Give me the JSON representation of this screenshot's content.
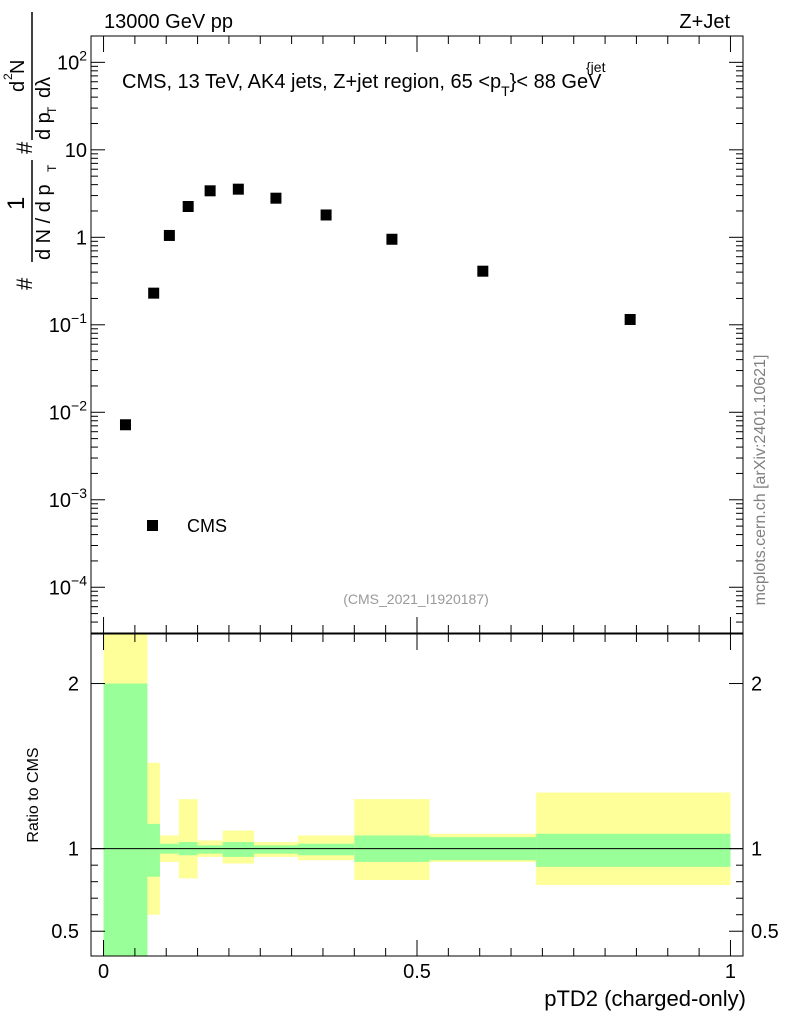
{
  "header": {
    "left": "13000 GeV pp",
    "right": "Z+Jet"
  },
  "side_label": "mcplots.cern.ch [arXiv:2401.10621]",
  "analysis_id": "(CMS_2021_I1920187)",
  "chart_data": [
    {
      "type": "scatter",
      "title": "CMS, 13 TeV, AK4 jets, Z+jet region, 65 <p_T^{jet}< 88 GeV",
      "title_parts": {
        "main": "CMS, 13 TeV, AK4 jets, Z+jet region, 65 <p",
        "sup": "{jet",
        "sub": "T",
        "tail": "}< 88 GeV"
      },
      "ylabel": "1/(dN/dp_T) d²N/(dp_T dλ)",
      "ylabel_parts": {
        "one": "1",
        "den": "d N / d p",
        "num": "d",
        "num_sup": "2",
        "num_tail": "N",
        "den2": "d p",
        "den2_tail": "dλ",
        "sub": "T",
        "hash": "#"
      },
      "yscale": "log",
      "ylim": [
        3e-05,
        200
      ],
      "xlim": [
        -0.02,
        1.02
      ],
      "yticks": [
        {
          "value": 0.0001,
          "label": "10",
          "exp": "−4"
        },
        {
          "value": 0.001,
          "label": "10",
          "exp": "−3"
        },
        {
          "value": 0.01,
          "label": "10",
          "exp": "−2"
        },
        {
          "value": 0.1,
          "label": "10",
          "exp": "−1"
        },
        {
          "value": 1,
          "label": "1",
          "exp": ""
        },
        {
          "value": 10,
          "label": "10",
          "exp": ""
        },
        {
          "value": 100,
          "label": "10",
          "exp": "2"
        }
      ],
      "series": [
        {
          "name": "CMS",
          "x": [
            0.035,
            0.08,
            0.105,
            0.135,
            0.17,
            0.215,
            0.275,
            0.355,
            0.46,
            0.605,
            0.84
          ],
          "y": [
            0.0072,
            0.23,
            1.05,
            2.25,
            3.4,
            3.55,
            2.8,
            1.8,
            0.95,
            0.41,
            0.115
          ]
        }
      ],
      "legend": {
        "placement": "bottom-left",
        "entries": [
          "CMS"
        ]
      }
    },
    {
      "type": "area",
      "ylabel": "Ratio to CMS",
      "xlabel": "pTD2 (charged-only)",
      "xlim": [
        -0.02,
        1.02
      ],
      "ylim": [
        0.35,
        2.3
      ],
      "xticks": [
        {
          "value": 0,
          "label": "0"
        },
        {
          "value": 0.5,
          "label": "0.5"
        },
        {
          "value": 1,
          "label": "1"
        }
      ],
      "yticks": [
        {
          "value": 0.5,
          "label": "0.5"
        },
        {
          "value": 1,
          "label": "1"
        },
        {
          "value": 2,
          "label": "2"
        }
      ],
      "reference_line": 1,
      "bins": [
        {
          "lo": 0.0,
          "hi": 0.07,
          "stat": [
            0.35,
            2.0
          ],
          "total": [
            0.35,
            2.3
          ]
        },
        {
          "lo": 0.07,
          "hi": 0.09,
          "stat": [
            0.83,
            1.15
          ],
          "total": [
            0.6,
            1.52
          ]
        },
        {
          "lo": 0.09,
          "hi": 0.12,
          "stat": [
            0.97,
            1.03
          ],
          "total": [
            0.92,
            1.08
          ]
        },
        {
          "lo": 0.12,
          "hi": 0.15,
          "stat": [
            0.96,
            1.04
          ],
          "total": [
            0.82,
            1.3
          ]
        },
        {
          "lo": 0.15,
          "hi": 0.19,
          "stat": [
            0.97,
            1.02
          ],
          "total": [
            0.95,
            1.05
          ]
        },
        {
          "lo": 0.19,
          "hi": 0.24,
          "stat": [
            0.95,
            1.04
          ],
          "total": [
            0.91,
            1.11
          ]
        },
        {
          "lo": 0.24,
          "hi": 0.31,
          "stat": [
            0.97,
            1.02
          ],
          "total": [
            0.95,
            1.04
          ]
        },
        {
          "lo": 0.31,
          "hi": 0.4,
          "stat": [
            0.96,
            1.03
          ],
          "total": [
            0.93,
            1.08
          ]
        },
        {
          "lo": 0.4,
          "hi": 0.52,
          "stat": [
            0.92,
            1.08
          ],
          "total": [
            0.81,
            1.3
          ]
        },
        {
          "lo": 0.52,
          "hi": 0.69,
          "stat": [
            0.93,
            1.07
          ],
          "total": [
            0.92,
            1.09
          ]
        },
        {
          "lo": 0.69,
          "hi": 1.0,
          "stat": [
            0.89,
            1.09
          ],
          "total": [
            0.78,
            1.34
          ]
        }
      ],
      "colors": {
        "stat": "#99ff99",
        "total": "#ffff99",
        "marker": "#000000"
      }
    }
  ]
}
